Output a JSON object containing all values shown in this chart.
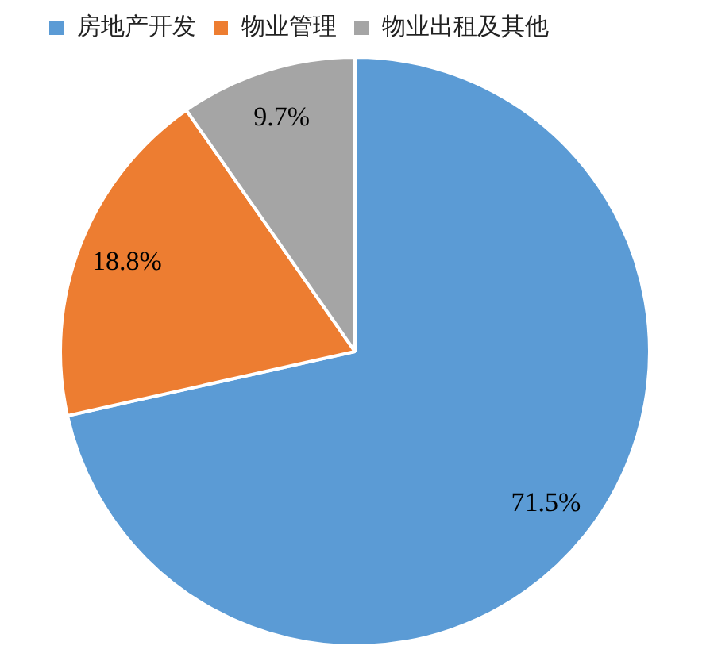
{
  "chart_data": {
    "type": "pie",
    "categories": [
      "房地产开发",
      "物业管理",
      "物业出租及其他"
    ],
    "values": [
      71.5,
      18.8,
      9.7
    ],
    "colors": [
      "#5b9bd5",
      "#ed7d31",
      "#a5a5a5"
    ],
    "value_labels": [
      "71.5%",
      "18.8%",
      "9.7%"
    ],
    "legend": "top left"
  }
}
